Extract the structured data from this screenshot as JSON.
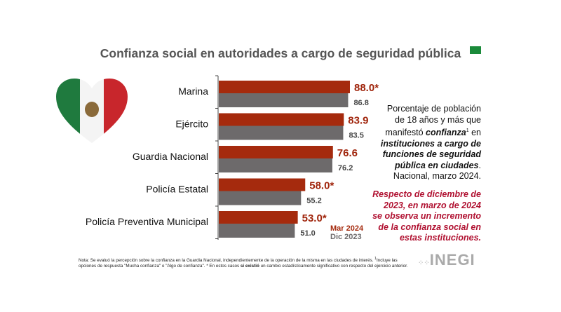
{
  "header": {
    "title": "Confianza social en autoridades a cargo de seguridad pública"
  },
  "colors": {
    "mar2024": "#a52a0d",
    "dic2023": "#6d6a6b",
    "accent_green": "#1a8a3a"
  },
  "chart_data": {
    "type": "bar",
    "orientation": "horizontal",
    "categories": [
      "Marina",
      "Ejército",
      "Guardia Nacional",
      "Policía Estatal",
      "Policía Preventiva Municipal"
    ],
    "series": [
      {
        "name": "Mar 2024",
        "values": [
          88.0,
          83.9,
          76.6,
          58.0,
          53.0
        ],
        "labels": [
          "88.0*",
          "83.9",
          "76.6",
          "58.0*",
          "53.0*"
        ]
      },
      {
        "name": "Dic 2023",
        "values": [
          86.8,
          83.5,
          76.2,
          55.2,
          51.0
        ],
        "labels": [
          "86.8",
          "83.5",
          "76.2",
          "55.2",
          "51.0"
        ]
      }
    ],
    "xlim": [
      0,
      100
    ],
    "grid": false,
    "legend": "bottom-right"
  },
  "side": {
    "text_before": "Porcentaje de población de 18 años y más que manifestó ",
    "emph1": "confianza",
    "sup": "1",
    "text_mid": " en ",
    "emph2": "instituciones a cargo de funciones de seguridad pública en ciudades",
    "text_after": ". Nacional, marzo 2024.",
    "highlight": "Respecto de diciembre de 2023, en marzo de 2024 se observa un incremento de la confianza social en estas instituciones."
  },
  "note": {
    "part1": "Nota: Se evaluó la percepción sobre la confianza en la Guardia Nacional, independientemente de la operación de la misma en las ciudades de interés. ",
    "sup": "1",
    "part2": "Incluye las opciones de respuesta \"Mucha confianza\" o \"Algo de confianza\". * En estos casos ",
    "bold": "si existió",
    "part3": " un cambio estadísticamente significativo con respecto del ejercicio anterior."
  },
  "logo": "INEGI"
}
